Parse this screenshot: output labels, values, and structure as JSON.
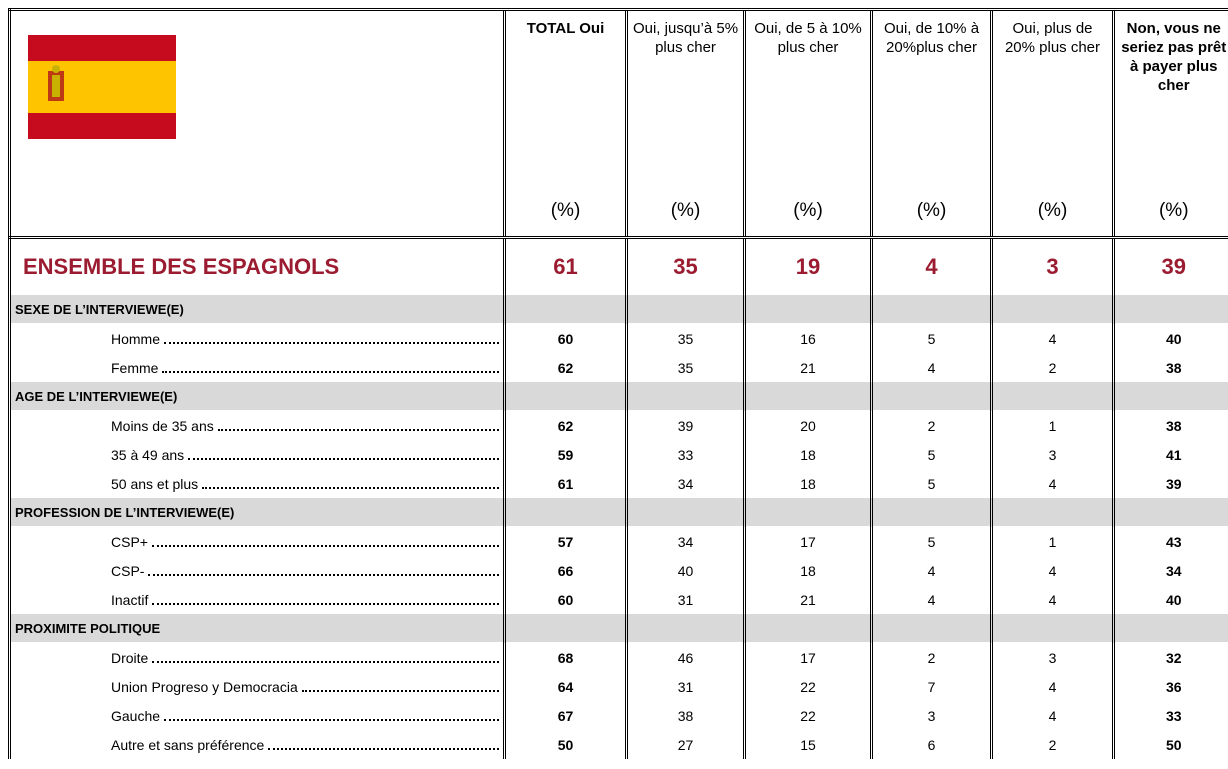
{
  "columns": [
    {
      "label": "TOTAL Oui",
      "unit": "(%)"
    },
    {
      "label": "Oui, jusqu’à 5% plus cher",
      "unit": "(%)"
    },
    {
      "label": "Oui, de 5 à 10% plus cher",
      "unit": "(%)"
    },
    {
      "label": "Oui, de 10% à 20%plus cher",
      "unit": "(%)"
    },
    {
      "label": "Oui, plus de 20% plus cher",
      "unit": "(%)"
    },
    {
      "label": "Non, vous ne seriez pas prêt à payer plus cher",
      "unit": "(%)"
    }
  ],
  "total": {
    "label": "ENSEMBLE DES ESPAGNOLS",
    "values": [
      61,
      35,
      19,
      4,
      3,
      39
    ]
  },
  "sections": [
    {
      "title": "SEXE DE L’INTERVIEWE(E)",
      "rows": [
        {
          "label": "Homme",
          "values": [
            60,
            35,
            16,
            5,
            4,
            40
          ]
        },
        {
          "label": "Femme",
          "values": [
            62,
            35,
            21,
            4,
            2,
            38
          ]
        }
      ]
    },
    {
      "title": "AGE DE L’INTERVIEWE(E)",
      "rows": [
        {
          "label": "Moins de 35 ans",
          "values": [
            62,
            39,
            20,
            2,
            1,
            38
          ]
        },
        {
          "label": "35 à 49 ans",
          "values": [
            59,
            33,
            18,
            5,
            3,
            41
          ]
        },
        {
          "label": "50 ans et plus",
          "values": [
            61,
            34,
            18,
            5,
            4,
            39
          ]
        }
      ]
    },
    {
      "title": "PROFESSION DE L’INTERVIEWE(E)",
      "rows": [
        {
          "label": "CSP+",
          "values": [
            57,
            34,
            17,
            5,
            1,
            43
          ]
        },
        {
          "label": "CSP-",
          "values": [
            66,
            40,
            18,
            4,
            4,
            34
          ]
        },
        {
          "label": "Inactif",
          "values": [
            60,
            31,
            21,
            4,
            4,
            40
          ]
        }
      ]
    },
    {
      "title": "PROXIMITE POLITIQUE",
      "rows": [
        {
          "label": "Droite",
          "values": [
            68,
            46,
            17,
            2,
            3,
            32
          ]
        },
        {
          "label": "Union Progreso y Democracia",
          "values": [
            64,
            31,
            22,
            7,
            4,
            36
          ]
        },
        {
          "label": "Gauche",
          "values": [
            67,
            38,
            22,
            3,
            4,
            33
          ]
        },
        {
          "label": "Autre et sans préférence",
          "values": [
            50,
            27,
            15,
            6,
            2,
            50
          ]
        }
      ]
    }
  ]
}
